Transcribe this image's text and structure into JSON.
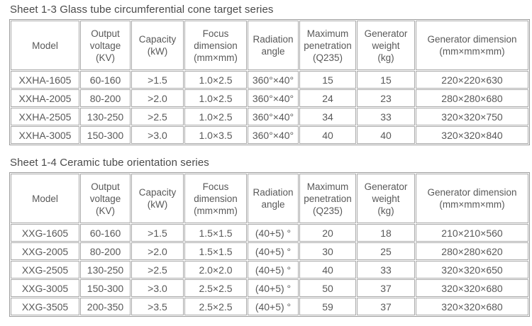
{
  "page": {
    "background": "#ffffff"
  },
  "colors": {
    "text": "#595959",
    "title_text": "#4a4a4a",
    "cell_border": "#a9a9a9",
    "outer_border": "#9b9b9b"
  },
  "tables": [
    {
      "title": "Sheet 1-3 Glass tube circumferential cone target series",
      "headers": [
        "Model",
        "Output\nvoltage\n(KV)",
        "Capacity\n(kW)",
        "Focus\ndimension\n(mm×mm)",
        "Radiation\nangle",
        "Maximum\npenetration\n(Q235)",
        "Generator\nweight\n(kg)",
        "Generator dimension\n(mm×mm×mm)"
      ],
      "rows": [
        [
          "XXHA-1605",
          "60-160",
          ">1.5",
          "1.0×2.5",
          "360°×40°",
          "15",
          "15",
          "220×220×630"
        ],
        [
          "XXHA-2005",
          "80-200",
          ">2.0",
          "1.0×2.5",
          "360°×40°",
          "24",
          "23",
          "280×280×680"
        ],
        [
          "XXHA-2505",
          "130-250",
          ">2.5",
          "1.0×2.5",
          "360°×40°",
          "34",
          "33",
          "320×320×750"
        ],
        [
          "XXHA-3005",
          "150-300",
          ">3.0",
          "1.0×3.5",
          "360°×40°",
          "40",
          "40",
          "320×320×840"
        ]
      ]
    },
    {
      "title": "Sheet 1-4 Ceramic tube orientation series",
      "headers": [
        "Model",
        "Output\nvoltage\n(KV)",
        "Capacity\n(kW)",
        "Focus\ndimension\n(mm×mm)",
        "Radiation\nangle",
        "Maximum\npenetration\n(Q235)",
        "Generator\nweight\n(kg)",
        "Generator dimension\n(mm×mm×mm)"
      ],
      "rows": [
        [
          "XXG-1605",
          "60-160",
          ">1.5",
          "1.5×1.5",
          "(40+5) °",
          "20",
          "18",
          "210×210×560"
        ],
        [
          "XXG-2005",
          "80-200",
          ">2.0",
          "1.5×1.5",
          "(40+5) °",
          "30",
          "25",
          "280×280×620"
        ],
        [
          "XXG-2505",
          "130-250",
          ">2.5",
          "2.0×2.0",
          "(40+5) °",
          "40",
          "33",
          "320×320×650"
        ],
        [
          "XXG-3005",
          "150-300",
          ">3.0",
          "2.5×2.5",
          "(40+5) °",
          "50",
          "37",
          "320×320×680"
        ],
        [
          "XXG-3505",
          "200-350",
          ">3.5",
          "2.5×2.5",
          "(40+5) °",
          "59",
          "37",
          "320×320×680"
        ]
      ]
    }
  ]
}
